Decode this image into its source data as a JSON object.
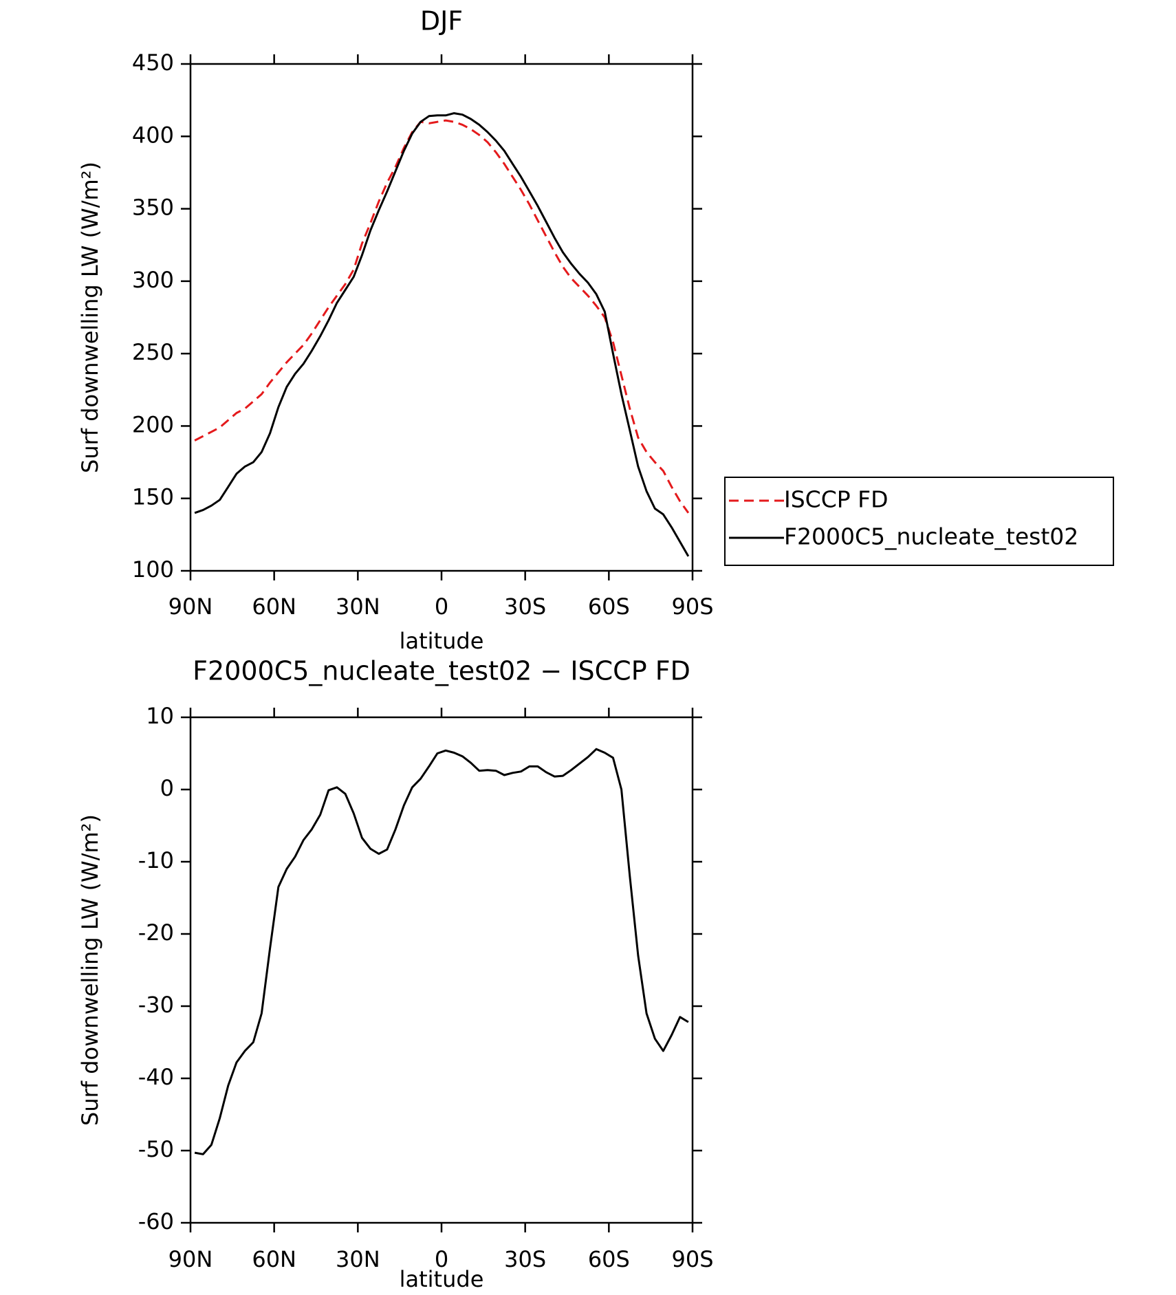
{
  "chart_data": [
    {
      "type": "line",
      "title": "DJF",
      "x_label": "latitude",
      "y_label": "Surf downwelling LW (W/m²)",
      "x": [
        88.5,
        85.5,
        82.5,
        79.5,
        76.5,
        73.5,
        70.5,
        67.5,
        64.5,
        61.5,
        58.5,
        55.5,
        52.5,
        49.5,
        46.5,
        43.5,
        40.5,
        37.5,
        34.5,
        31.5,
        28.5,
        25.5,
        22.5,
        19.5,
        16.5,
        13.5,
        10.5,
        7.5,
        4.5,
        1.5,
        -1.5,
        -4.5,
        -7.5,
        -10.5,
        -13.5,
        -16.5,
        -19.5,
        -22.5,
        -25.5,
        -28.5,
        -31.5,
        -34.5,
        -37.5,
        -40.5,
        -43.5,
        -46.5,
        -49.5,
        -52.5,
        -55.5,
        -58.5,
        -61.5,
        -64.5,
        -67.5,
        -70.5,
        -73.5,
        -76.5,
        -79.5,
        -82.5,
        -85.5,
        -88.5
      ],
      "series": [
        {
          "name": "ISCCP FD",
          "color": "#e41a1c",
          "dashed": true,
          "values": [
            190,
            193,
            196,
            199,
            204,
            209,
            212,
            217,
            222,
            230,
            237,
            244,
            250,
            256,
            264,
            273,
            282,
            290,
            298,
            308,
            326,
            340,
            355,
            368,
            379,
            392,
            403,
            410,
            409,
            410,
            411,
            410,
            408,
            405,
            401,
            396,
            389,
            381,
            372,
            363,
            353,
            342,
            331,
            320,
            310,
            302,
            296,
            290,
            283,
            275,
            258,
            235,
            212,
            192,
            182,
            175,
            169,
            158,
            148,
            140
          ]
        },
        {
          "name": "F2000C5_nucleate_test02",
          "color": "#000000",
          "dashed": false,
          "values": [
            140,
            142,
            145,
            149,
            158,
            167,
            172,
            175,
            182,
            195,
            213,
            227,
            236,
            243,
            252,
            262,
            273,
            285,
            294,
            303,
            318,
            335,
            349,
            362,
            376,
            390,
            402,
            410,
            414,
            414.5,
            414.5,
            416,
            415,
            412,
            408,
            403,
            397,
            390,
            381,
            372,
            362,
            352,
            341,
            330,
            320,
            312,
            305,
            299,
            291,
            279,
            250,
            222,
            197,
            172,
            155,
            143,
            139,
            130,
            120,
            110
          ]
        }
      ],
      "xlim": [
        90,
        -90
      ],
      "xticks": [
        {
          "value": 90,
          "label": "90N"
        },
        {
          "value": 60,
          "label": "60N"
        },
        {
          "value": 30,
          "label": "30N"
        },
        0,
        {
          "value": -30,
          "label": "30S"
        },
        {
          "value": -60,
          "label": "60S"
        },
        {
          "value": -90,
          "label": "90S"
        }
      ],
      "ylim": [
        100,
        450
      ],
      "yticks": [
        100,
        150,
        200,
        250,
        300,
        350,
        400,
        450
      ],
      "legend": "right"
    },
    {
      "type": "line",
      "title": "F2000C5_nucleate_test02 − ISCCP FD",
      "x_label": "latitude",
      "y_label": "Surf downwelling LW (W/m²)",
      "x": [
        88.5,
        85.5,
        82.5,
        79.5,
        76.5,
        73.5,
        70.5,
        67.5,
        64.5,
        61.5,
        58.5,
        55.5,
        52.5,
        49.5,
        46.5,
        43.5,
        40.5,
        37.5,
        34.5,
        31.5,
        28.5,
        25.5,
        22.5,
        19.5,
        16.5,
        13.5,
        10.5,
        7.5,
        4.5,
        1.5,
        -1.5,
        -4.5,
        -7.5,
        -10.5,
        -13.5,
        -16.5,
        -19.5,
        -22.5,
        -25.5,
        -28.5,
        -31.5,
        -34.5,
        -37.5,
        -40.5,
        -43.5,
        -46.5,
        -49.5,
        -52.5,
        -55.5,
        -58.5,
        -61.5,
        -64.5,
        -67.5,
        -70.5,
        -73.5,
        -76.5,
        -79.5,
        -82.5,
        -85.5,
        -88.5
      ],
      "series": [
        {
          "color": "#000000",
          "dashed": false,
          "values": [
            -50.3,
            -50.5,
            -49.2,
            -45.5,
            -41,
            -37.8,
            -36.2,
            -35,
            -31,
            -22,
            -13.5,
            -11,
            -9.3,
            -7,
            -5.5,
            -3.5,
            -0.1,
            0.3,
            -0.6,
            -3.3,
            -6.7,
            -8.2,
            -8.9,
            -8.3,
            -5.5,
            -2.2,
            0.3,
            1.5,
            3.2,
            5,
            5.4,
            5.1,
            4.6,
            3.7,
            2.6,
            2.7,
            2.6,
            2,
            2.3,
            2.5,
            3.2,
            3.2,
            2.4,
            1.8,
            1.9,
            2.7,
            3.6,
            4.5,
            5.6,
            5.1,
            4.4,
            0,
            -12,
            -23,
            -31,
            -34.5,
            -36.2,
            -34,
            -31.5,
            -32.2
          ]
        }
      ],
      "xlim": [
        90,
        -90
      ],
      "xticks": [
        {
          "value": 90,
          "label": "90N"
        },
        {
          "value": 60,
          "label": "60N"
        },
        {
          "value": 30,
          "label": "30N"
        },
        0,
        {
          "value": -30,
          "label": "30S"
        },
        {
          "value": -60,
          "label": "60S"
        },
        {
          "value": -90,
          "label": "90S"
        }
      ],
      "ylim": [
        -60,
        10
      ],
      "yticks": [
        -60,
        -50,
        -40,
        -30,
        -20,
        -10,
        0,
        10
      ]
    }
  ]
}
